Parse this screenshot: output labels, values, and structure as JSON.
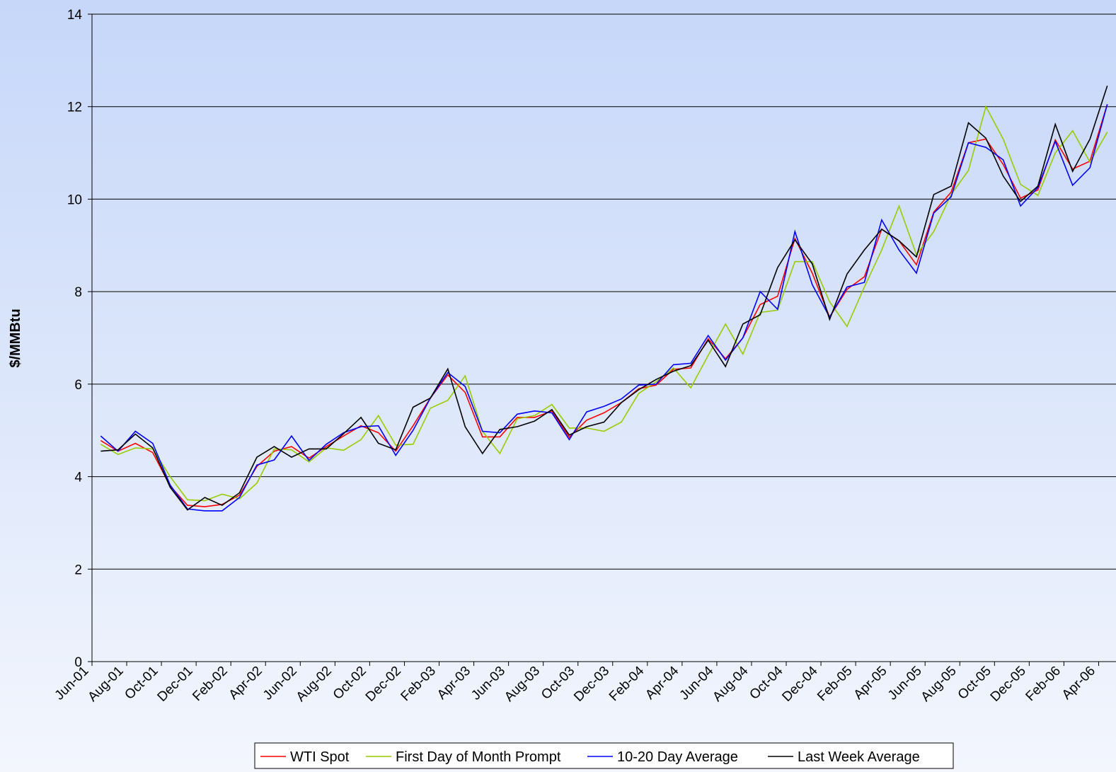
{
  "chart_data": {
    "type": "line",
    "y_label": "$/MMBtu",
    "categories": [
      "Jun-01",
      null,
      "Aug-01",
      null,
      "Oct-01",
      null,
      "Dec-01",
      null,
      "Feb-02",
      null,
      "Apr-02",
      null,
      "Jun-02",
      null,
      "Aug-02",
      null,
      "Oct-02",
      null,
      "Dec-02",
      null,
      "Feb-03",
      null,
      "Apr-03",
      null,
      "Jun-03",
      null,
      "Aug-03",
      null,
      "Oct-03",
      null,
      "Dec-03",
      null,
      "Feb-04",
      null,
      "Apr-04",
      null,
      "Jun-04",
      null,
      "Aug-04",
      null,
      "Oct-04",
      null,
      "Dec-04",
      null,
      "Feb-05",
      null,
      "Apr-05",
      null,
      "Jun-05",
      null,
      "Aug-05",
      null,
      "Oct-05",
      null,
      "Dec-05",
      null,
      "Feb-06",
      null,
      "Apr-06"
    ],
    "series": [
      {
        "name": "WTI Spot",
        "color": "#ff0000",
        "values": [
          4.78,
          4.55,
          4.72,
          4.52,
          3.8,
          3.38,
          3.35,
          3.4,
          3.6,
          4.22,
          4.55,
          4.65,
          4.4,
          4.65,
          4.88,
          5.1,
          4.95,
          4.55,
          5.1,
          5.7,
          6.2,
          5.82,
          4.86,
          4.86,
          5.28,
          5.28,
          5.42,
          4.85,
          5.22,
          5.38,
          5.6,
          5.9,
          5.98,
          6.32,
          6.35,
          6.98,
          6.55,
          7.0,
          7.72,
          7.9,
          9.15,
          8.4,
          7.45,
          8.05,
          8.32,
          9.35,
          9.1,
          8.58,
          9.72,
          10.15,
          11.22,
          11.3,
          10.75,
          10.02,
          10.2,
          11.28,
          10.65,
          10.82,
          12.05
        ]
      },
      {
        "name": "First Day of Month Prompt",
        "color": "#99cc00",
        "values": [
          4.7,
          4.48,
          4.62,
          4.6,
          4.0,
          3.5,
          3.48,
          3.62,
          3.52,
          3.86,
          4.6,
          4.58,
          4.32,
          4.62,
          4.57,
          4.8,
          5.32,
          4.68,
          4.7,
          5.48,
          5.65,
          6.18,
          4.98,
          4.5,
          5.25,
          5.32,
          5.56,
          5.05,
          5.05,
          4.98,
          5.18,
          5.8,
          6.05,
          6.35,
          5.92,
          6.62,
          7.3,
          6.65,
          7.55,
          7.6,
          8.65,
          8.65,
          7.78,
          7.25,
          8.1,
          8.9,
          9.85,
          8.8,
          9.3,
          10.1,
          10.62,
          12.0,
          11.3,
          10.32,
          10.08,
          11.0,
          11.48,
          10.8,
          11.45
        ]
      },
      {
        "name": "10-20 Day Average",
        "color": "#0000ff",
        "values": [
          4.88,
          4.55,
          4.98,
          4.72,
          3.82,
          3.3,
          3.26,
          3.26,
          3.55,
          4.25,
          4.36,
          4.88,
          4.35,
          4.7,
          4.95,
          5.08,
          5.1,
          4.46,
          5.0,
          5.7,
          6.25,
          5.95,
          4.98,
          4.95,
          5.35,
          5.42,
          5.38,
          4.8,
          5.4,
          5.52,
          5.68,
          5.98,
          6.0,
          6.42,
          6.45,
          7.05,
          6.52,
          7.0,
          8.0,
          7.62,
          9.3,
          8.15,
          7.45,
          8.1,
          8.2,
          9.55,
          8.9,
          8.4,
          9.7,
          10.05,
          11.22,
          11.12,
          10.85,
          9.85,
          10.25,
          11.25,
          10.3,
          10.68,
          12.05
        ]
      },
      {
        "name": "Last Week Average",
        "color": "#000000",
        "values": [
          4.55,
          4.58,
          4.92,
          4.62,
          3.77,
          3.28,
          3.55,
          3.38,
          3.65,
          4.42,
          4.65,
          4.42,
          4.6,
          4.6,
          4.93,
          5.28,
          4.72,
          4.58,
          5.5,
          5.7,
          6.33,
          5.08,
          4.5,
          5.02,
          5.08,
          5.2,
          5.45,
          4.9,
          5.08,
          5.18,
          5.6,
          5.88,
          6.1,
          6.28,
          6.4,
          6.95,
          6.38,
          7.3,
          7.5,
          8.52,
          9.12,
          8.6,
          7.4,
          8.38,
          8.9,
          9.35,
          9.1,
          8.75,
          10.1,
          10.28,
          11.65,
          11.32,
          10.5,
          9.95,
          10.28,
          11.62,
          10.6,
          11.3,
          12.45
        ]
      }
    ],
    "ylim": [
      0,
      14
    ],
    "yticks": [
      0,
      2,
      4,
      6,
      8,
      10,
      12,
      14
    ],
    "grid": true,
    "legend": "bottom"
  }
}
